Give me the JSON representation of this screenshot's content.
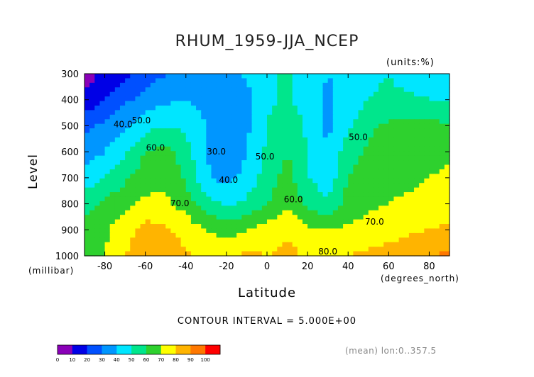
{
  "title": "RHUM_1959-JJA_NCEP",
  "units_label": "(units:%)",
  "y_axis": {
    "label": "Level",
    "unit_label": "(millibar)",
    "ticks": [
      "300",
      "400",
      "500",
      "600",
      "700",
      "800",
      "900",
      "1000"
    ]
  },
  "x_axis": {
    "label": "Latitude",
    "unit_label": "(degrees_north)",
    "ticks": [
      "-80",
      "-60",
      "-40",
      "-20",
      "0",
      "20",
      "40",
      "60",
      "80"
    ]
  },
  "contour_interval_text": "CONTOUR INTERVAL = 5.000E+00",
  "footer_text": "(mean) lon:0..357.5",
  "colorbar": {
    "labels": [
      "0",
      "10",
      "20",
      "30",
      "40",
      "50",
      "60",
      "70",
      "80",
      "90",
      "100"
    ],
    "colors": [
      "#8a00b8",
      "#0000e6",
      "#0050ff",
      "#0096ff",
      "#00e6ff",
      "#00e68c",
      "#2ed12e",
      "#ffff00",
      "#ffb400",
      "#ff7800",
      "#ff0000"
    ]
  },
  "chart_data": {
    "type": "heatmap",
    "title": "RHUM_1959-JJA_NCEP",
    "xlabel": "Latitude",
    "ylabel": "Level",
    "xlim": [
      -90,
      90
    ],
    "ylim": [
      1000,
      300
    ],
    "y_scale": "pressure (millibar), increasing downward",
    "z_unit": "%",
    "contour_interval": 5,
    "contour_labels": [
      "40.0",
      "50.0",
      "60.0",
      "30.0",
      "40.0",
      "50.0",
      "60.0",
      "50.0",
      "70.0",
      "70.0",
      "80.0"
    ],
    "x": [
      -90,
      -80,
      -70,
      -60,
      -50,
      -40,
      -30,
      -20,
      -10,
      0,
      10,
      20,
      30,
      40,
      50,
      60,
      70,
      80,
      90
    ],
    "y": [
      300,
      400,
      500,
      600,
      700,
      800,
      900,
      1000
    ],
    "z": [
      [
        5,
        12,
        18,
        24,
        30,
        36,
        40,
        35,
        42,
        48,
        52,
        45,
        40,
        42,
        48,
        50,
        45,
        45,
        48
      ],
      [
        12,
        20,
        28,
        34,
        38,
        40,
        36,
        30,
        36,
        48,
        52,
        44,
        38,
        44,
        50,
        52,
        52,
        50,
        50
      ],
      [
        28,
        32,
        38,
        46,
        50,
        48,
        40,
        32,
        38,
        50,
        58,
        48,
        38,
        48,
        58,
        62,
        62,
        64,
        60
      ],
      [
        34,
        40,
        48,
        60,
        64,
        54,
        40,
        30,
        40,
        52,
        60,
        50,
        40,
        56,
        62,
        64,
        66,
        66,
        68
      ],
      [
        44,
        50,
        58,
        66,
        68,
        58,
        42,
        36,
        44,
        54,
        64,
        50,
        44,
        60,
        64,
        66,
        68,
        70,
        72
      ],
      [
        56,
        62,
        68,
        72,
        72,
        66,
        54,
        48,
        52,
        60,
        68,
        58,
        52,
        64,
        68,
        70,
        72,
        72,
        74
      ],
      [
        64,
        68,
        76,
        84,
        82,
        76,
        70,
        66,
        70,
        74,
        78,
        72,
        70,
        72,
        74,
        76,
        78,
        80,
        82
      ],
      [
        66,
        70,
        80,
        88,
        86,
        82,
        78,
        76,
        82,
        80,
        84,
        78,
        78,
        80,
        82,
        84,
        86,
        90,
        92
      ]
    ]
  }
}
